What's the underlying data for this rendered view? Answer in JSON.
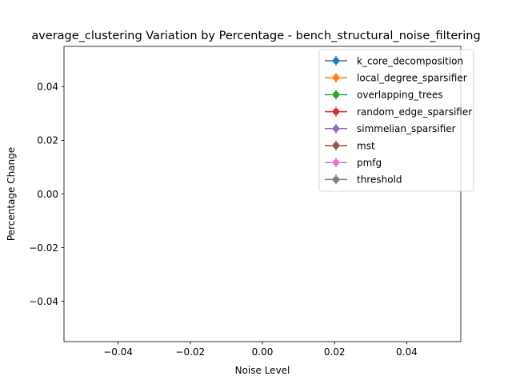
{
  "chart_data": {
    "type": "line",
    "title": "average_clustering Variation by Percentage - bench_structural_noise_filtering",
    "xlabel": "Noise Level",
    "ylabel": "Percentage Change",
    "xlim": [
      -0.055,
      0.055
    ],
    "ylim": [
      -0.055,
      0.055
    ],
    "x_ticks": [
      -0.04,
      -0.02,
      0.0,
      0.02,
      0.04
    ],
    "x_tick_labels": [
      "−0.04",
      "−0.02",
      "0.00",
      "0.02",
      "0.04"
    ],
    "y_ticks": [
      0.04,
      0.02,
      0.0,
      -0.02,
      -0.04
    ],
    "y_tick_labels": [
      "0.04",
      "0.02",
      "0.00",
      "−0.02",
      "−0.04"
    ],
    "grid": false,
    "legend_position": "top-right",
    "series": [
      {
        "name": "k_core_decomposition",
        "color": "#1f77b4",
        "x": [],
        "y": []
      },
      {
        "name": "local_degree_sparsifier",
        "color": "#ff7f0e",
        "x": [],
        "y": []
      },
      {
        "name": "overlapping_trees",
        "color": "#2ca02c",
        "x": [],
        "y": []
      },
      {
        "name": "random_edge_sparsifier",
        "color": "#d62728",
        "x": [],
        "y": []
      },
      {
        "name": "simmelian_sparsifier",
        "color": "#9467bd",
        "x": [],
        "y": []
      },
      {
        "name": "mst",
        "color": "#8c564b",
        "x": [],
        "y": []
      },
      {
        "name": "pmfg",
        "color": "#e377c2",
        "x": [],
        "y": []
      },
      {
        "name": "threshold",
        "color": "#7f7f7f",
        "x": [],
        "y": []
      }
    ]
  }
}
